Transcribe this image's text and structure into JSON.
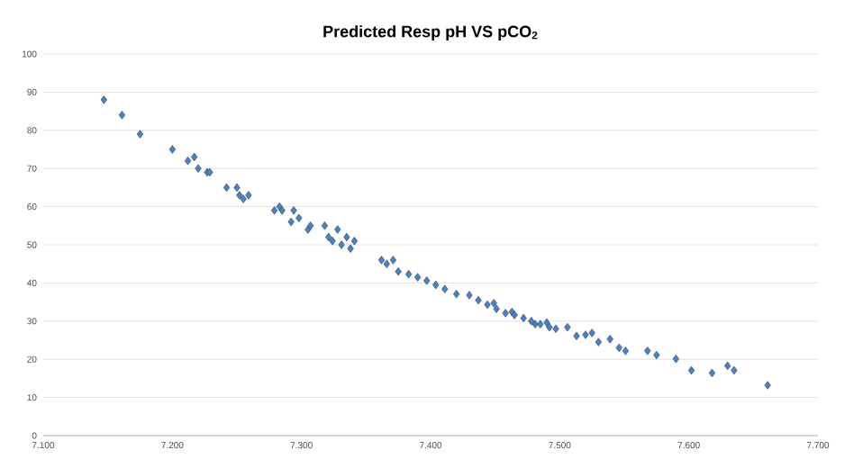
{
  "chart_data": {
    "type": "scatter",
    "title": "Predicted Resp pH VS pCO$_{2}$",
    "xlim": [
      7.1,
      7.7
    ],
    "ylim": [
      0,
      100
    ],
    "xticks": [
      {
        "value": 7.1,
        "label": "7.100"
      },
      {
        "value": 7.2,
        "label": "7.200"
      },
      {
        "value": 7.3,
        "label": "7.300"
      },
      {
        "value": 7.4,
        "label": "7.400"
      },
      {
        "value": 7.5,
        "label": "7.500"
      },
      {
        "value": 7.6,
        "label": "7.600"
      },
      {
        "value": 7.7,
        "label": "7.700"
      }
    ],
    "yticks": [
      0,
      10,
      20,
      30,
      40,
      50,
      60,
      70,
      80,
      90,
      100
    ],
    "grid": "y",
    "marker": "diamond",
    "series": [
      {
        "color": "#4f81bd",
        "x": [
          7.147,
          7.161,
          7.175,
          7.2,
          7.212,
          7.217,
          7.22,
          7.227,
          7.229,
          7.242,
          7.25,
          7.252,
          7.255,
          7.259,
          7.279,
          7.283,
          7.285,
          7.294,
          7.298,
          7.292,
          7.305,
          7.307,
          7.318,
          7.321,
          7.324,
          7.328,
          7.331,
          7.335,
          7.338,
          7.341,
          7.362,
          7.366,
          7.371,
          7.375,
          7.383,
          7.39,
          7.397,
          7.404,
          7.411,
          7.42,
          7.43,
          7.437,
          7.444,
          7.449,
          7.451,
          7.458,
          7.463,
          7.465,
          7.472,
          7.478,
          7.481,
          7.485,
          7.49,
          7.492,
          7.497,
          7.506,
          7.513,
          7.52,
          7.525,
          7.53,
          7.539,
          7.546,
          7.551,
          7.568,
          7.575,
          7.59,
          7.602,
          7.618,
          7.63,
          7.635,
          7.661
        ],
        "values": [
          88,
          84,
          79,
          75,
          72,
          73,
          70,
          69,
          69,
          65,
          65,
          63,
          62,
          63,
          59,
          60,
          59,
          59,
          57,
          56,
          54,
          55,
          55,
          52,
          51,
          54,
          50,
          52,
          49,
          51,
          46,
          45,
          46,
          43,
          42.3,
          41.5,
          40.6,
          39.5,
          38.4,
          37.1,
          36.8,
          35.5,
          34.3,
          34.7,
          33.2,
          32.1,
          32.4,
          31.6,
          30.8,
          30,
          29.2,
          29.2,
          29.6,
          28.4,
          28,
          28.4,
          26.1,
          26.4,
          26.9,
          24.5,
          25.3,
          23,
          22.2,
          22.2,
          21.1,
          20.1,
          17.1,
          16.4,
          18.3,
          17.1,
          13.2
        ]
      }
    ]
  }
}
